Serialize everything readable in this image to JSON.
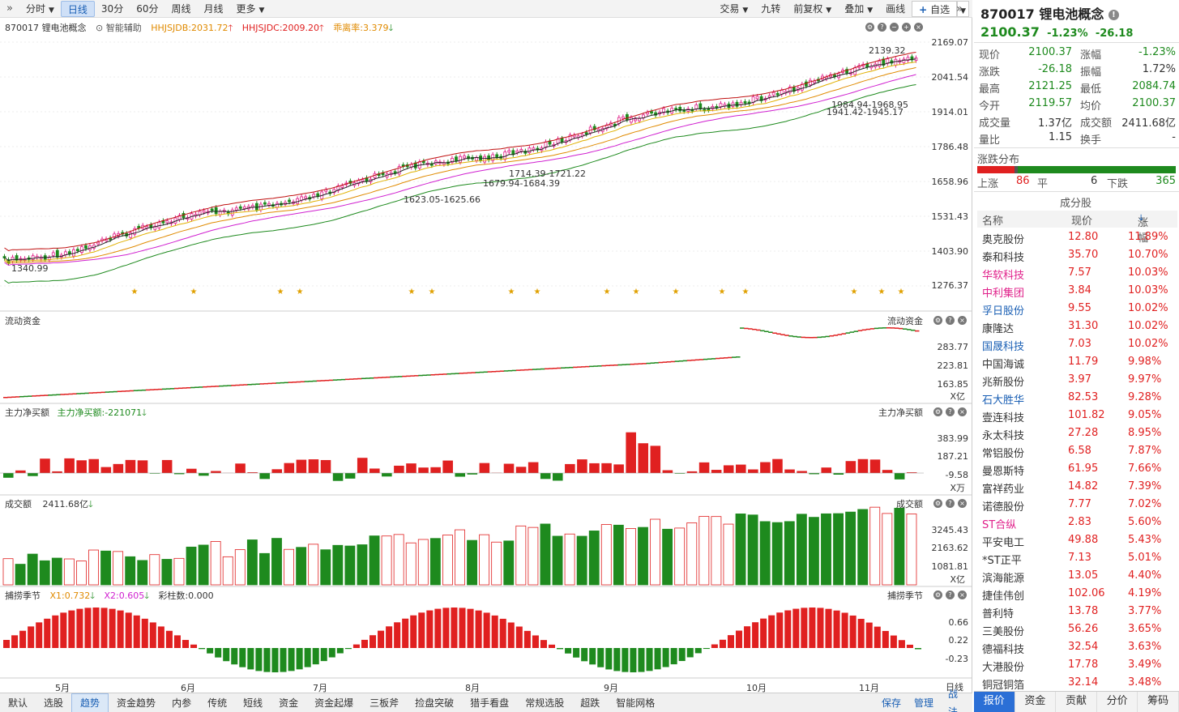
{
  "toolbar": {
    "expand_icon": "double-chevron-right",
    "period_buttons": [
      "分时",
      "日线",
      "30分",
      "60分",
      "周线",
      "月线",
      "更多"
    ],
    "active_period": "日线",
    "right_buttons": [
      "交易",
      "九转",
      "前复权",
      "叠加",
      "画线"
    ],
    "watchlist_button": "自选"
  },
  "main_panel": {
    "code_name": "870017 锂电池概念",
    "assist_label": "智能辅助",
    "indicators": [
      {
        "label": "HHJSJDB:2031.72",
        "color": "#e08a00",
        "arrow": "up"
      },
      {
        "label": "HHJSJDC:2009.20",
        "color": "#e02020",
        "arrow": "up"
      },
      {
        "label": "乖离率:3.379",
        "color": "#e08a00",
        "arrow": "down"
      }
    ],
    "y_ticks": [
      "2169.07",
      "2041.54",
      "1914.01",
      "1786.48",
      "1658.96",
      "1531.43",
      "1403.90",
      "1276.37"
    ],
    "annotations": [
      "2139.32",
      "1984.94-1968.95",
      "1941.42-1945.17",
      "1714.39-1721.22",
      "1679.94-1684.39",
      "1623.05-1625.66",
      "1340.99"
    ]
  },
  "flow_panel": {
    "title": "流动资金",
    "title_right": "流动资金",
    "y_ticks": [
      "283.77",
      "223.81",
      "163.85"
    ],
    "unit": "X亿"
  },
  "net_panel": {
    "title": "主力净买额",
    "indicator": "主力净买额:-221071",
    "title_right": "主力净买额",
    "y_ticks": [
      "383.99",
      "187.21",
      "-9.58"
    ],
    "unit": "X万"
  },
  "volume_panel": {
    "title": "成交额",
    "indicator": "2411.68亿",
    "title_right": "成交额",
    "y_ticks": [
      "3245.43",
      "2163.62",
      "1081.81"
    ],
    "unit": "X亿"
  },
  "season_panel": {
    "title": "捕捞季节",
    "x1": "X1:0.732",
    "x2": "X2:0.605",
    "bars": "彩柱数:0.000",
    "title_right": "捕捞季节",
    "y_ticks": [
      "0.66",
      "0.22",
      "-0.23"
    ]
  },
  "x_axis": {
    "months": [
      "5月",
      "6月",
      "7月",
      "8月",
      "9月",
      "10月",
      "11月"
    ],
    "right_label": "日线"
  },
  "bottom_tabs": [
    "默认",
    "选股",
    "趋势",
    "资金趋势",
    "内参",
    "传统",
    "短线",
    "资金",
    "资金起爆",
    "三板斧",
    "捡盘突破",
    "猎手看盘",
    "常规选股",
    "超跌",
    "智能网格"
  ],
  "active_bottom_tab": "趋势",
  "bottom_right": [
    "保存",
    "管理",
    "战法"
  ],
  "quote": {
    "title": "870017 锂电池概念",
    "price": "2100.37",
    "change_pct": "-1.23%",
    "change": "-26.18",
    "rows": [
      {
        "l1": "现价",
        "v1": "2100.37",
        "c1": "green",
        "l2": "涨幅",
        "v2": "-1.23%",
        "c2": "green"
      },
      {
        "l1": "涨跌",
        "v1": "-26.18",
        "c1": "green",
        "l2": "振幅",
        "v2": "1.72%",
        "c2": ""
      },
      {
        "l1": "最高",
        "v1": "2121.25",
        "c1": "green",
        "l2": "最低",
        "v2": "2084.74",
        "c2": "green"
      },
      {
        "l1": "今开",
        "v1": "2119.57",
        "c1": "green",
        "l2": "均价",
        "v2": "2100.37",
        "c2": "green"
      },
      {
        "l1": "成交量",
        "v1": "1.37亿",
        "c1": "",
        "l2": "成交额",
        "v2": "2411.68亿",
        "c2": ""
      },
      {
        "l1": "量比",
        "v1": "1.15",
        "c1": "",
        "l2": "换手",
        "v2": "-",
        "c2": ""
      }
    ],
    "dist_title": "涨跌分布",
    "up_label": "上涨",
    "up_count": "86",
    "flat_label": "平",
    "flat_count": "6",
    "down_label": "下跌",
    "down_count": "365",
    "constituents_title": "成分股",
    "list_headers": [
      "名称",
      "现价",
      "涨幅"
    ]
  },
  "stocks": [
    {
      "name": "奥克股份",
      "price": "12.80",
      "pct": "11.89%",
      "nc": ""
    },
    {
      "name": "泰和科技",
      "price": "35.70",
      "pct": "10.70%",
      "nc": ""
    },
    {
      "name": "华软科技",
      "price": "7.57",
      "pct": "10.03%",
      "nc": "magenta"
    },
    {
      "name": "中利集团",
      "price": "3.84",
      "pct": "10.03%",
      "nc": "magenta"
    },
    {
      "name": "孚日股份",
      "price": "9.55",
      "pct": "10.02%",
      "nc": "blue"
    },
    {
      "name": "康隆达",
      "price": "31.30",
      "pct": "10.02%",
      "nc": ""
    },
    {
      "name": "国晟科技",
      "price": "7.03",
      "pct": "10.02%",
      "nc": "blue"
    },
    {
      "name": "中国海诚",
      "price": "11.79",
      "pct": "9.98%",
      "nc": ""
    },
    {
      "name": "兆新股份",
      "price": "3.97",
      "pct": "9.97%",
      "nc": ""
    },
    {
      "name": "石大胜华",
      "price": "82.53",
      "pct": "9.28%",
      "nc": "blue"
    },
    {
      "name": "壹连科技",
      "price": "101.82",
      "pct": "9.05%",
      "nc": ""
    },
    {
      "name": "永太科技",
      "price": "27.28",
      "pct": "8.95%",
      "nc": ""
    },
    {
      "name": "常铝股份",
      "price": "6.58",
      "pct": "7.87%",
      "nc": ""
    },
    {
      "name": "曼恩斯特",
      "price": "61.95",
      "pct": "7.66%",
      "nc": ""
    },
    {
      "name": "富祥药业",
      "price": "14.82",
      "pct": "7.39%",
      "nc": ""
    },
    {
      "name": "诺德股份",
      "price": "7.77",
      "pct": "7.02%",
      "nc": ""
    },
    {
      "name": "ST合纵",
      "price": "2.83",
      "pct": "5.60%",
      "nc": "magenta"
    },
    {
      "name": "平安电工",
      "price": "49.88",
      "pct": "5.43%",
      "nc": ""
    },
    {
      "name": "*ST正平",
      "price": "7.13",
      "pct": "5.01%",
      "nc": ""
    },
    {
      "name": "滨海能源",
      "price": "13.05",
      "pct": "4.40%",
      "nc": ""
    },
    {
      "name": "捷佳伟创",
      "price": "102.06",
      "pct": "4.19%",
      "nc": ""
    },
    {
      "name": "普利特",
      "price": "13.78",
      "pct": "3.77%",
      "nc": ""
    },
    {
      "name": "三美股份",
      "price": "56.26",
      "pct": "3.65%",
      "nc": ""
    },
    {
      "name": "德福科技",
      "price": "32.54",
      "pct": "3.63%",
      "nc": ""
    },
    {
      "name": "大港股份",
      "price": "17.78",
      "pct": "3.49%",
      "nc": ""
    },
    {
      "name": "铜冠铜箔",
      "price": "32.14",
      "pct": "3.48%",
      "nc": ""
    }
  ],
  "right_tabs": [
    "报价",
    "资金",
    "贡献",
    "分价",
    "筹码"
  ],
  "active_right_tab": "报价"
}
